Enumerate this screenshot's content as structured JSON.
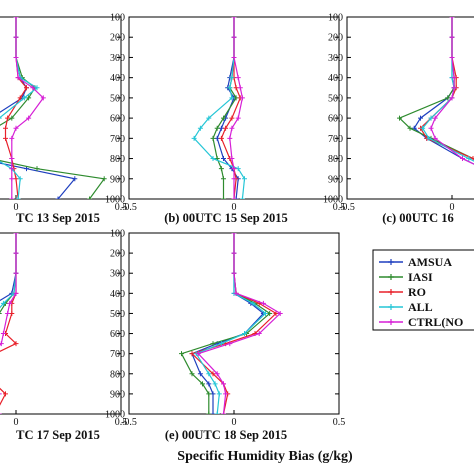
{
  "chart_data": {
    "type": "line",
    "x_axis_label": "Specific Humidity Bias (g/kg)",
    "y_ticks": [
      100,
      200,
      300,
      400,
      500,
      600,
      700,
      800,
      900,
      1000
    ],
    "x_tick_labels": [
      "-0.5",
      "0",
      "0.5"
    ],
    "xlim": [
      -0.5,
      0.5
    ],
    "ylim": [
      100,
      1000
    ],
    "y_reversed": true,
    "legend": {
      "placement": "right",
      "entries": [
        {
          "name": "AMSUA",
          "color": "#1f3fbf"
        },
        {
          "name": "IASI",
          "color": "#2e8b2e"
        },
        {
          "name": "RO",
          "color": "#e8202a"
        },
        {
          "name": "ALL",
          "color": "#25c6d6"
        },
        {
          "name": "CTRL(NO",
          "color": "#d61fd6"
        }
      ]
    },
    "levels": [
      100,
      200,
      300,
      400,
      450,
      500,
      600,
      650,
      700,
      800,
      850,
      900,
      1000
    ],
    "panels": [
      {
        "caption": "TC 13 Sep 2015",
        "series": [
          {
            "name": "AMSUA",
            "values": [
              0,
              0,
              0,
              0.02,
              0.05,
              0.03,
              -0.12,
              -0.16,
              -0.18,
              -0.18,
              0.05,
              0.28,
              0.2
            ]
          },
          {
            "name": "IASI",
            "values": [
              0,
              0,
              0,
              0.03,
              0.09,
              0.06,
              -0.02,
              -0.1,
              -0.14,
              -0.12,
              0.1,
              0.42,
              0.35
            ]
          },
          {
            "name": "RO",
            "values": [
              0,
              0,
              0,
              0.01,
              0.05,
              0.02,
              -0.04,
              -0.05,
              -0.05,
              -0.02,
              -0.01,
              0.0,
              0.01
            ]
          },
          {
            "name": "ALL",
            "values": [
              0,
              0,
              0,
              0.02,
              0.1,
              0.04,
              -0.08,
              -0.11,
              -0.12,
              -0.1,
              -0.02,
              0.02,
              0.01
            ]
          },
          {
            "name": "CTRL(NO",
            "values": [
              0,
              0,
              0,
              0.01,
              0.08,
              0.13,
              0.06,
              0.0,
              -0.02,
              -0.02,
              -0.02,
              -0.02,
              -0.02
            ]
          }
        ]
      },
      {
        "caption": "(b) 00UTC 15 Sep 2015",
        "series": [
          {
            "name": "AMSUA",
            "values": [
              0,
              0,
              0,
              -0.02,
              -0.03,
              0.0,
              -0.04,
              -0.06,
              -0.08,
              -0.05,
              -0.01,
              0.02,
              0.01
            ]
          },
          {
            "name": "IASI",
            "values": [
              0,
              0,
              0,
              -0.01,
              -0.02,
              0.01,
              -0.05,
              -0.08,
              -0.1,
              -0.08,
              -0.06,
              -0.05,
              -0.05
            ]
          },
          {
            "name": "RO",
            "values": [
              0,
              0,
              0,
              0.0,
              0.01,
              0.03,
              -0.01,
              -0.04,
              -0.06,
              -0.02,
              0.0,
              0.01,
              0.0
            ]
          },
          {
            "name": "ALL",
            "values": [
              0,
              0,
              0,
              -0.01,
              -0.02,
              -0.01,
              -0.12,
              -0.16,
              -0.19,
              -0.1,
              0.02,
              0.05,
              0.04
            ]
          },
          {
            "name": "CTRL(NO",
            "values": [
              0,
              0,
              0,
              0.02,
              0.03,
              0.04,
              0.02,
              -0.01,
              -0.02,
              -0.01,
              0.0,
              0.0,
              0.0
            ]
          }
        ]
      },
      {
        "caption": "(c) 00UTC 16",
        "series": [
          {
            "name": "AMSUA",
            "values": [
              0,
              0,
              0,
              0.0,
              0.01,
              -0.02,
              -0.15,
              -0.18,
              -0.12,
              0.05,
              0.15,
              0.22,
              0.3
            ]
          },
          {
            "name": "IASI",
            "values": [
              0,
              0,
              0,
              0.01,
              0.01,
              -0.02,
              -0.25,
              -0.2,
              -0.1,
              0.1,
              0.2,
              0.3,
              0.35
            ]
          },
          {
            "name": "RO",
            "values": [
              0,
              0,
              0,
              0.02,
              0.02,
              0.0,
              -0.1,
              -0.15,
              -0.12,
              0.1,
              0.2,
              0.3,
              0.35
            ]
          },
          {
            "name": "ALL",
            "values": [
              0,
              0,
              0,
              0.0,
              0.01,
              0.0,
              -0.1,
              -0.14,
              -0.11,
              0.08,
              0.18,
              0.28,
              0.35
            ]
          },
          {
            "name": "CTRL(NO",
            "values": [
              0,
              0,
              0,
              0.01,
              0.01,
              0.0,
              -0.08,
              -0.1,
              -0.08,
              0.05,
              0.15,
              0.25,
              0.33
            ]
          }
        ]
      },
      {
        "caption": "TC 17 Sep 2015",
        "series": [
          {
            "name": "AMSUA",
            "values": [
              0,
              0,
              0,
              -0.02,
              -0.1,
              -0.18,
              -0.23,
              -0.25,
              -0.3,
              -0.4,
              -0.3,
              -0.2,
              -0.2
            ]
          },
          {
            "name": "IASI",
            "values": [
              0,
              0,
              0,
              -0.01,
              -0.05,
              -0.08,
              -0.12,
              -0.15,
              -0.25,
              -0.3,
              -0.22,
              -0.2,
              -0.15
            ]
          },
          {
            "name": "RO",
            "values": [
              0,
              0,
              0,
              0.0,
              -0.02,
              -0.02,
              -0.05,
              0.0,
              -0.1,
              -0.15,
              -0.1,
              -0.05,
              -0.1
            ]
          },
          {
            "name": "ALL",
            "values": [
              0,
              0,
              0,
              -0.01,
              -0.06,
              -0.1,
              -0.13,
              -0.14,
              -0.2,
              -0.25,
              -0.2,
              -0.14,
              -0.12
            ]
          },
          {
            "name": "CTRL(NO",
            "values": [
              0,
              0,
              0,
              0.0,
              -0.03,
              -0.04,
              -0.06,
              -0.07,
              -0.12,
              -0.18,
              -0.12,
              -0.08,
              -0.08
            ]
          }
        ]
      },
      {
        "caption": "(e) 00UTC 18 Sep 2015",
        "series": [
          {
            "name": "AMSUA",
            "values": [
              0,
              0,
              0,
              0.0,
              0.08,
              0.14,
              0.05,
              -0.08,
              -0.2,
              -0.16,
              -0.12,
              -0.1,
              -0.1
            ]
          },
          {
            "name": "IASI",
            "values": [
              0,
              0,
              0,
              0.01,
              0.1,
              0.17,
              0.06,
              -0.1,
              -0.25,
              -0.2,
              -0.15,
              -0.12,
              -0.12
            ]
          },
          {
            "name": "RO",
            "values": [
              0,
              0,
              0,
              0.01,
              0.12,
              0.2,
              0.1,
              -0.04,
              -0.2,
              -0.1,
              -0.05,
              -0.03,
              -0.05
            ]
          },
          {
            "name": "ALL",
            "values": [
              0,
              0,
              0,
              0.0,
              0.09,
              0.15,
              0.05,
              -0.06,
              -0.18,
              -0.12,
              -0.09,
              -0.07,
              -0.08
            ]
          },
          {
            "name": "CTRL(NO",
            "values": [
              0,
              0,
              0,
              0.01,
              0.14,
              0.22,
              0.12,
              -0.02,
              -0.17,
              -0.08,
              -0.05,
              -0.04,
              -0.05
            ]
          }
        ]
      }
    ]
  }
}
